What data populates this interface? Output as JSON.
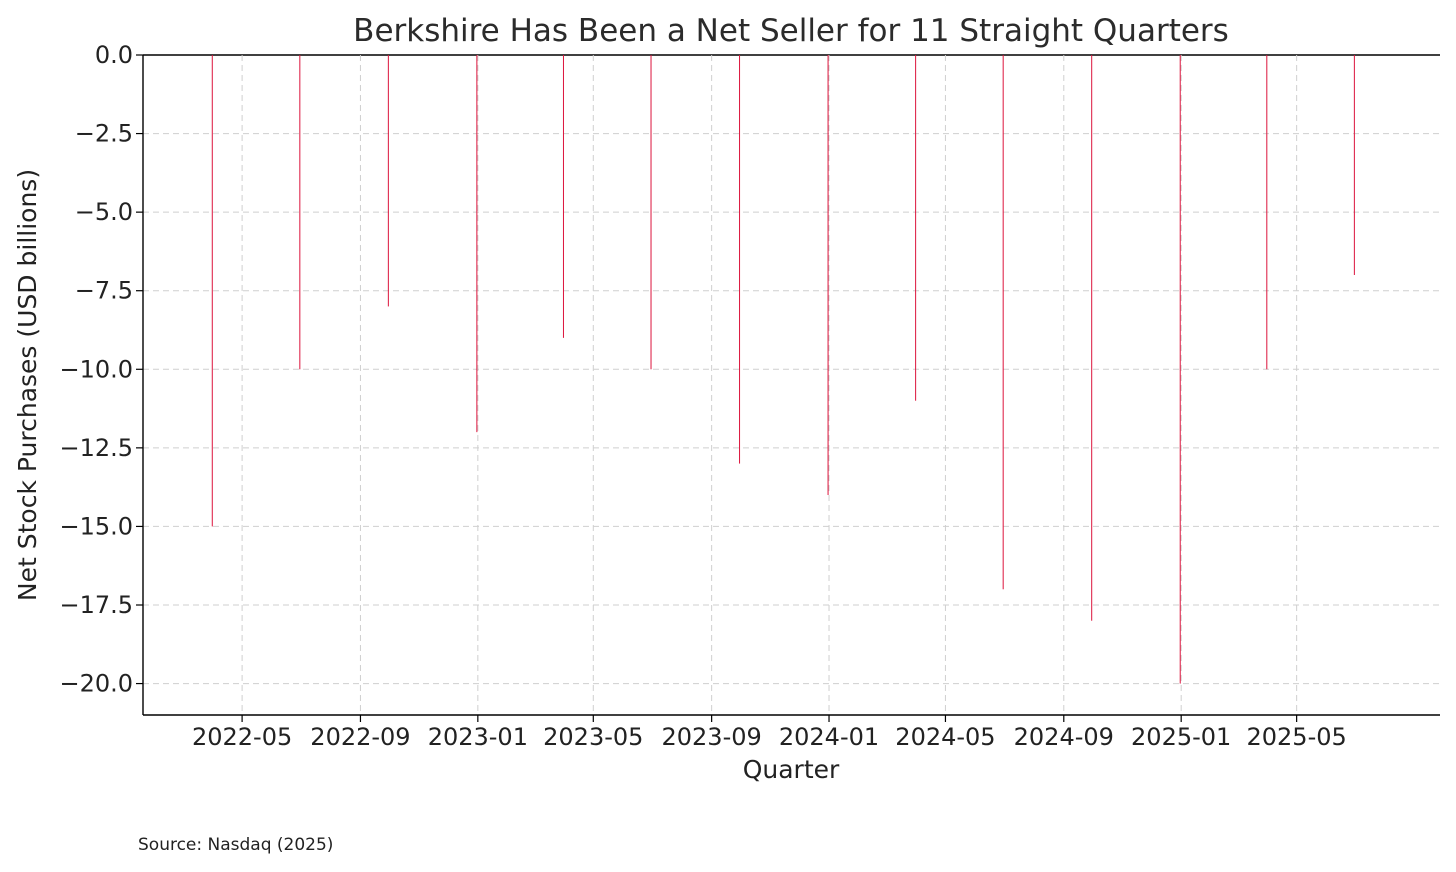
{
  "chart_data": {
    "type": "bar",
    "title": "Berkshire Has Been a Net Seller for 11 Straight Quarters",
    "xlabel": "Quarter",
    "ylabel": "Net Stock Purchases (USD billions)",
    "x_axis": "date",
    "xlim": [
      "2022-01-18",
      "2025-09-27"
    ],
    "ylim": [
      -21,
      0
    ],
    "grid": true,
    "legend": "none",
    "bar_color": "#dc143c",
    "x_ticks": [
      "2022-05",
      "2022-09",
      "2023-01",
      "2023-05",
      "2023-09",
      "2024-01",
      "2024-05",
      "2024-09",
      "2025-01",
      "2025-05"
    ],
    "y_ticks": [
      0.0,
      -2.5,
      -5.0,
      -7.5,
      -10.0,
      -12.5,
      -15.0,
      -17.5,
      -20.0
    ],
    "y_tick_labels": [
      "0.0",
      "−2.5",
      "−5.0",
      "−7.5",
      "−10.0",
      "−12.5",
      "−15.0",
      "−17.5",
      "−20.0"
    ],
    "x": [
      "2022-03-31",
      "2022-06-30",
      "2022-09-30",
      "2022-12-31",
      "2023-03-31",
      "2023-06-30",
      "2023-09-30",
      "2023-12-31",
      "2024-03-31",
      "2024-06-30",
      "2024-09-30",
      "2024-12-31",
      "2025-03-31",
      "2025-06-30"
    ],
    "values": [
      -15,
      -10,
      -8,
      -12,
      -9,
      -10,
      -13,
      -14,
      -11,
      -17,
      -18,
      -20,
      -10,
      -7
    ]
  },
  "footer": {
    "source": "Source: Nasdaq (2025)"
  }
}
